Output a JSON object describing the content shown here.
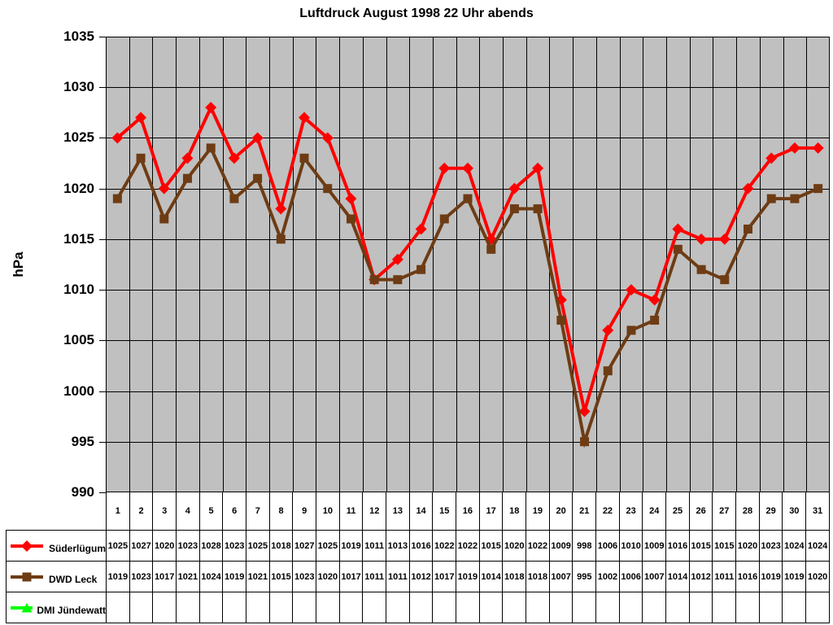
{
  "title": "Luftdruck August 1998 22 Uhr abends",
  "chart_data": {
    "type": "line",
    "title": "Luftdruck August 1998 22 Uhr abends",
    "ylabel": "hPa",
    "xlabel": "",
    "ylim": [
      990,
      1035
    ],
    "ystep": 5,
    "grid": true,
    "plot_bg": "#C0C0C0",
    "grid_color": "#000000",
    "legend_position": "table-bottom",
    "x": [
      1,
      2,
      3,
      4,
      5,
      6,
      7,
      8,
      9,
      10,
      11,
      12,
      13,
      14,
      15,
      16,
      17,
      18,
      19,
      20,
      21,
      22,
      23,
      24,
      25,
      26,
      27,
      28,
      29,
      30,
      31
    ],
    "series": [
      {
        "name": "Süderlügum",
        "marker": "diamond",
        "color": "#FF0000",
        "values": [
          1025,
          1027,
          1020,
          1023,
          1028,
          1023,
          1025,
          1018,
          1027,
          1025,
          1019,
          1011,
          1013,
          1016,
          1022,
          1022,
          1015,
          1020,
          1022,
          1009,
          998,
          1006,
          1010,
          1009,
          1016,
          1015,
          1015,
          1020,
          1023,
          1024,
          1024
        ]
      },
      {
        "name": "DWD Leck",
        "marker": "square",
        "color": "#6E3C14",
        "values": [
          1019,
          1023,
          1017,
          1021,
          1024,
          1019,
          1021,
          1015,
          1023,
          1020,
          1017,
          1011,
          1011,
          1012,
          1017,
          1019,
          1014,
          1018,
          1018,
          1007,
          995,
          1002,
          1006,
          1007,
          1014,
          1012,
          1011,
          1016,
          1019,
          1019,
          1020
        ]
      },
      {
        "name": "DMI Jündewatt",
        "marker": "triangle",
        "color": "#00FF00",
        "values": []
      }
    ]
  }
}
